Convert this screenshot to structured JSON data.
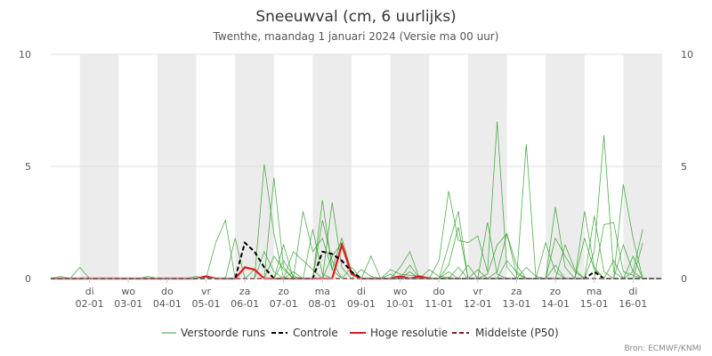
{
  "chart_data": {
    "type": "line",
    "title": "Sneeuwval (cm, 6 uurlijks)",
    "subtitle": "Twenthe, maandag 1 januari 2024 (Versie ma 00 uur)",
    "source": "Bron: ECMWF/KNMI",
    "ylim": [
      0,
      10
    ],
    "yticks": [
      0,
      5,
      10
    ],
    "xlim": [
      0,
      15.75
    ],
    "grid": "horizontal",
    "legend_position": "bottom",
    "x_ticks": [
      {
        "x": 1,
        "day": "di",
        "date": "02-01"
      },
      {
        "x": 2,
        "day": "wo",
        "date": "03-01"
      },
      {
        "x": 3,
        "day": "do",
        "date": "04-01"
      },
      {
        "x": 4,
        "day": "vr",
        "date": "05-01"
      },
      {
        "x": 5,
        "day": "za",
        "date": "06-01"
      },
      {
        "x": 6,
        "day": "zo",
        "date": "07-01"
      },
      {
        "x": 7,
        "day": "ma",
        "date": "08-01"
      },
      {
        "x": 8,
        "day": "di",
        "date": "09-01"
      },
      {
        "x": 9,
        "day": "wo",
        "date": "10-01"
      },
      {
        "x": 10,
        "day": "do",
        "date": "11-01"
      },
      {
        "x": 11,
        "day": "vr",
        "date": "12-01"
      },
      {
        "x": 12,
        "day": "za",
        "date": "13-01"
      },
      {
        "x": 13,
        "day": "zo",
        "date": "14-01"
      },
      {
        "x": 14,
        "day": "ma",
        "date": "15-01"
      },
      {
        "x": 15,
        "day": "di",
        "date": "16-01"
      }
    ],
    "shaded_days": [
      [
        0.75,
        1.75
      ],
      [
        2.75,
        3.75
      ],
      [
        4.75,
        5.75
      ],
      [
        6.75,
        7.75
      ],
      [
        8.75,
        9.75
      ],
      [
        10.75,
        11.75
      ],
      [
        12.75,
        13.75
      ],
      [
        14.75,
        15.75
      ]
    ],
    "series": [
      {
        "name": "Verstoorde runs",
        "color": "#33a02c",
        "members": [
          [
            [
              0,
              0
            ],
            [
              0.25,
              0.1
            ],
            [
              0.5,
              0
            ],
            [
              0.75,
              0.5
            ],
            [
              1,
              0
            ],
            [
              15.75,
              0
            ]
          ],
          [
            [
              0,
              0
            ],
            [
              4,
              0
            ],
            [
              4.25,
              1.6
            ],
            [
              4.5,
              2.6
            ],
            [
              4.75,
              0
            ],
            [
              5.25,
              0
            ],
            [
              5.5,
              5.1
            ],
            [
              5.75,
              2
            ],
            [
              6,
              0
            ],
            [
              7,
              0
            ],
            [
              7.25,
              3.4
            ],
            [
              7.5,
              0.5
            ],
            [
              7.75,
              0
            ],
            [
              9.75,
              0
            ],
            [
              10,
              0.8
            ],
            [
              10.25,
              3.9
            ],
            [
              10.5,
              1.7
            ],
            [
              10.75,
              1.6
            ],
            [
              11,
              1.9
            ],
            [
              11.25,
              0.3
            ],
            [
              11.5,
              7
            ],
            [
              11.75,
              0.5
            ],
            [
              12,
              0
            ],
            [
              13.75,
              0
            ],
            [
              14,
              1.2
            ],
            [
              14.25,
              6.4
            ],
            [
              14.5,
              0.3
            ],
            [
              14.75,
              0
            ],
            [
              15,
              0.3
            ],
            [
              15.25,
              2.2
            ]
          ],
          [
            [
              0,
              0
            ],
            [
              4.5,
              0
            ],
            [
              4.75,
              1.8
            ],
            [
              5,
              0
            ],
            [
              5.5,
              0
            ],
            [
              5.75,
              4.5
            ],
            [
              6,
              0.5
            ],
            [
              6.25,
              0
            ],
            [
              7,
              0
            ],
            [
              7.25,
              1
            ],
            [
              7.5,
              1.6
            ],
            [
              7.75,
              0.3
            ],
            [
              8,
              0
            ],
            [
              8.5,
              0
            ],
            [
              8.75,
              0.4
            ],
            [
              9,
              0.2
            ],
            [
              10,
              0
            ],
            [
              10.5,
              3
            ],
            [
              10.75,
              0
            ],
            [
              12,
              0
            ],
            [
              12.25,
              6
            ],
            [
              12.5,
              0
            ],
            [
              13.5,
              0
            ],
            [
              13.75,
              3
            ],
            [
              14,
              0.5
            ],
            [
              14.25,
              0
            ],
            [
              15,
              0
            ],
            [
              15.25,
              1.6
            ]
          ],
          [
            [
              0,
              0
            ],
            [
              5.75,
              0
            ],
            [
              6,
              1.5
            ],
            [
              6.25,
              0
            ],
            [
              6.5,
              3
            ],
            [
              6.75,
              1.2
            ],
            [
              7,
              1.8
            ],
            [
              7.25,
              0.4
            ],
            [
              7.5,
              1.8
            ],
            [
              7.75,
              0.3
            ],
            [
              8,
              0
            ],
            [
              10,
              0
            ],
            [
              10.25,
              0.6
            ],
            [
              10.5,
              2.3
            ],
            [
              10.75,
              0
            ],
            [
              11.25,
              0
            ],
            [
              11.5,
              0.3
            ],
            [
              11.75,
              2
            ],
            [
              12,
              0.6
            ],
            [
              12.25,
              0
            ],
            [
              12.75,
              0
            ],
            [
              13,
              1.8
            ],
            [
              13.25,
              1
            ],
            [
              13.5,
              0.3
            ],
            [
              13.75,
              0
            ],
            [
              14.5,
              0
            ],
            [
              14.75,
              4.2
            ],
            [
              15,
              1.8
            ],
            [
              15.25,
              0
            ]
          ],
          [
            [
              0,
              0
            ],
            [
              5.5,
              0
            ],
            [
              5.75,
              1
            ],
            [
              6,
              0.4
            ],
            [
              6.25,
              0
            ],
            [
              6.75,
              0
            ],
            [
              7,
              2.6
            ],
            [
              7.25,
              0.8
            ],
            [
              7.5,
              0
            ],
            [
              8,
              0
            ],
            [
              8.25,
              1
            ],
            [
              8.5,
              0
            ],
            [
              9,
              0
            ],
            [
              9.25,
              0.6
            ],
            [
              9.5,
              0
            ],
            [
              11,
              0
            ],
            [
              11.25,
              2.5
            ],
            [
              11.5,
              0.2
            ],
            [
              11.75,
              0
            ],
            [
              12.75,
              0
            ],
            [
              13,
              3.2
            ],
            [
              13.25,
              0.5
            ],
            [
              13.5,
              0
            ],
            [
              14,
              0
            ],
            [
              14.25,
              2.4
            ],
            [
              14.5,
              2.5
            ],
            [
              14.75,
              0.3
            ],
            [
              15.25,
              0
            ]
          ],
          [
            [
              0,
              0
            ],
            [
              5.25,
              0
            ],
            [
              5.5,
              1.2
            ],
            [
              5.75,
              0.3
            ],
            [
              6,
              0
            ],
            [
              6.75,
              0
            ],
            [
              7,
              3.5
            ],
            [
              7.25,
              0.4
            ],
            [
              7.5,
              0
            ],
            [
              8.75,
              0
            ],
            [
              9,
              0.5
            ],
            [
              9.25,
              1.2
            ],
            [
              9.5,
              0
            ],
            [
              10.25,
              0
            ],
            [
              10.5,
              0.5
            ],
            [
              10.75,
              0
            ],
            [
              11,
              0
            ],
            [
              11.25,
              0.2
            ],
            [
              11.5,
              1.5
            ],
            [
              11.75,
              2
            ],
            [
              12,
              0.2
            ],
            [
              12.25,
              0
            ],
            [
              13,
              0
            ],
            [
              13.25,
              1.5
            ],
            [
              13.5,
              0.4
            ],
            [
              13.75,
              0
            ],
            [
              14.5,
              0
            ],
            [
              14.75,
              1.5
            ],
            [
              15,
              0.3
            ],
            [
              15.25,
              0
            ]
          ],
          [
            [
              0,
              0
            ],
            [
              6,
              0
            ],
            [
              6.25,
              1.2
            ],
            [
              6.5,
              0.8
            ],
            [
              6.75,
              0.4
            ],
            [
              7,
              0
            ],
            [
              7.75,
              0
            ],
            [
              8,
              0.4
            ],
            [
              8.25,
              0.1
            ],
            [
              8.5,
              0
            ],
            [
              9.5,
              0
            ],
            [
              9.75,
              0.4
            ],
            [
              10,
              0.1
            ],
            [
              10.5,
              0
            ],
            [
              10.75,
              0.6
            ],
            [
              11,
              0
            ],
            [
              12.5,
              0
            ],
            [
              12.75,
              1.6
            ],
            [
              13,
              0.3
            ],
            [
              13.25,
              0
            ],
            [
              13.75,
              0
            ],
            [
              14,
              2.8
            ],
            [
              14.25,
              0.3
            ],
            [
              14.5,
              0
            ]
          ],
          [
            [
              0,
              0
            ],
            [
              5,
              0
            ],
            [
              5.25,
              0.4
            ],
            [
              5.5,
              0
            ],
            [
              6.5,
              0
            ],
            [
              6.75,
              2.2
            ],
            [
              7,
              0.2
            ],
            [
              7.25,
              0
            ],
            [
              9,
              0
            ],
            [
              9.25,
              0.3
            ],
            [
              9.5,
              0
            ],
            [
              11.5,
              0
            ],
            [
              11.75,
              0.8
            ],
            [
              12,
              0.3
            ],
            [
              12.25,
              0
            ],
            [
              13.5,
              0
            ],
            [
              13.75,
              1.8
            ],
            [
              14,
              0.4
            ],
            [
              14.25,
              0
            ]
          ],
          [
            [
              0,
              0
            ],
            [
              2.25,
              0
            ],
            [
              2.5,
              0.1
            ],
            [
              2.75,
              0
            ],
            [
              3.5,
              0
            ],
            [
              3.75,
              0.1
            ],
            [
              4,
              0
            ],
            [
              5.75,
              0
            ],
            [
              6,
              0.8
            ],
            [
              6.25,
              0.1
            ],
            [
              6.5,
              0
            ],
            [
              7.5,
              0
            ],
            [
              7.75,
              0.5
            ],
            [
              8,
              0
            ],
            [
              10,
              0
            ],
            [
              10.25,
              0.3
            ],
            [
              10.5,
              0
            ],
            [
              12,
              0
            ],
            [
              12.25,
              0.5
            ],
            [
              12.5,
              0.1
            ],
            [
              12.75,
              0
            ],
            [
              14.75,
              0
            ],
            [
              15,
              1
            ],
            [
              15.25,
              0
            ]
          ],
          [
            [
              0,
              0
            ],
            [
              6,
              0
            ],
            [
              6.25,
              0.3
            ],
            [
              6.5,
              0
            ],
            [
              8.5,
              0
            ],
            [
              8.75,
              0.2
            ],
            [
              9,
              0
            ],
            [
              10.75,
              0
            ],
            [
              11,
              0.4
            ],
            [
              11.25,
              0
            ],
            [
              12.75,
              0
            ],
            [
              13,
              0.6
            ],
            [
              13.25,
              0
            ],
            [
              14.25,
              0
            ],
            [
              14.5,
              0.8
            ],
            [
              14.75,
              0
            ]
          ]
        ]
      },
      {
        "name": "Controle",
        "color": "#000000",
        "values": [
          [
            0,
            0
          ],
          [
            4.75,
            0
          ],
          [
            5,
            1.6
          ],
          [
            5.25,
            1.2
          ],
          [
            5.5,
            0.5
          ],
          [
            5.75,
            0
          ],
          [
            6.5,
            0
          ],
          [
            6.75,
            0
          ],
          [
            7,
            1.2
          ],
          [
            7.25,
            1.1
          ],
          [
            7.5,
            0.8
          ],
          [
            7.75,
            0.3
          ],
          [
            8,
            0
          ],
          [
            13.75,
            0
          ],
          [
            14,
            0.3
          ],
          [
            14.25,
            0
          ],
          [
            15.75,
            0
          ]
        ]
      },
      {
        "name": "Hoge resolutie",
        "color": "#e31a1c",
        "values": [
          [
            0,
            0
          ],
          [
            3.75,
            0
          ],
          [
            4,
            0.1
          ],
          [
            4.25,
            0
          ],
          [
            4.75,
            0
          ],
          [
            5,
            0.5
          ],
          [
            5.25,
            0.4
          ],
          [
            5.5,
            0
          ],
          [
            7.25,
            0
          ],
          [
            7.5,
            1.5
          ],
          [
            7.75,
            0.2
          ],
          [
            8,
            0
          ],
          [
            8.75,
            0
          ],
          [
            9,
            0.1
          ],
          [
            9.25,
            0
          ],
          [
            9.5,
            0.1
          ],
          [
            9.75,
            0
          ]
        ]
      },
      {
        "name": "Middelste (P50)",
        "color": "#8b1a1a",
        "values": [
          [
            0,
            0
          ],
          [
            15.75,
            0
          ]
        ]
      }
    ]
  }
}
